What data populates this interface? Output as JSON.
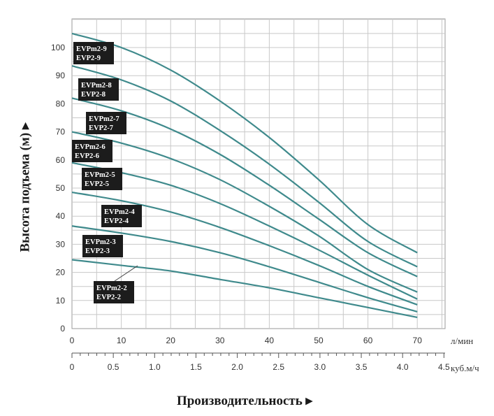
{
  "chart_data": {
    "type": "line",
    "ylabel": "Высота подъема (м) ▸",
    "xlabel": "Производительность ▸",
    "x_unit_primary": "л/мин",
    "x_unit_secondary": "куб.м/ч",
    "xlim": [
      0,
      75
    ],
    "ylim": [
      0,
      110
    ],
    "x_ticks": [
      0,
      10,
      20,
      30,
      40,
      50,
      60,
      70
    ],
    "y_ticks": [
      0,
      10,
      20,
      30,
      40,
      50,
      60,
      70,
      80,
      90,
      100
    ],
    "x2_ticks": [
      "0",
      "0.5",
      "1.0",
      "1.5",
      "2.0",
      "2.5",
      "3.0",
      "3.5",
      "4.0",
      "4.5"
    ],
    "grid": true,
    "line_color": "#3f8a8c",
    "x": [
      0,
      10,
      20,
      30,
      40,
      50,
      60,
      70
    ],
    "series": [
      {
        "labels": [
          "EVPm2-9",
          "EVP2-9"
        ],
        "values": [
          105,
          100,
          92,
          81,
          68,
          53,
          37,
          27
        ]
      },
      {
        "labels": [
          "EVPm2-8",
          "EVP2-8"
        ],
        "values": [
          93.5,
          88.5,
          81,
          70.5,
          58.5,
          45,
          31,
          22
        ]
      },
      {
        "labels": [
          "EVPm2-7",
          "EVP2-7"
        ],
        "values": [
          82,
          77.5,
          71,
          62,
          51,
          39,
          27,
          18.5
        ]
      },
      {
        "labels": [
          "EVPm2-6",
          "EVP2-6"
        ],
        "values": [
          70,
          66,
          60.5,
          53,
          43.5,
          33,
          21,
          13
        ]
      },
      {
        "labels": [
          "EVPm2-5",
          "EVP2-5"
        ],
        "values": [
          59,
          55.5,
          51,
          44.5,
          36.5,
          28,
          19,
          10.5
        ]
      },
      {
        "labels": [
          "EVPm2-4",
          "EVP2-4"
        ],
        "values": [
          48.5,
          45.5,
          41.5,
          36,
          29.5,
          22.5,
          15,
          8.5
        ]
      },
      {
        "labels": [
          "EVPm2-3",
          "EVP2-3"
        ],
        "values": [
          36.5,
          34,
          31,
          27,
          22,
          16.5,
          11,
          6
        ]
      },
      {
        "labels": [
          "EVPm2-2",
          "EVP2-2"
        ],
        "values": [
          24.5,
          22.5,
          20.5,
          17.5,
          14.5,
          11,
          7.5,
          4
        ]
      }
    ]
  }
}
